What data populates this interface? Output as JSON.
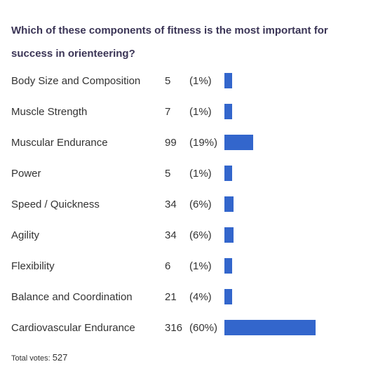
{
  "question": "Which of these components of fitness is the most important for success in orienteering?",
  "colors": {
    "bar": "#3366cc",
    "question_text": "#3b3556",
    "body_text": "#333333"
  },
  "chart_data": {
    "type": "bar",
    "orientation": "horizontal",
    "title": "Which of these components of fitness is the most important for success in orienteering?",
    "categories": [
      "Body Size and Composition",
      "Muscle Strength",
      "Muscular Endurance",
      "Power",
      "Speed / Quickness",
      "Agility",
      "Flexibility",
      "Balance and Coordination",
      "Cardiovascular Endurance"
    ],
    "values": [
      5,
      7,
      99,
      5,
      34,
      34,
      6,
      21,
      316
    ],
    "percent_labels": [
      "(1%)",
      "(1%)",
      "(19%)",
      "(1%)",
      "(6%)",
      "(6%)",
      "(1%)",
      "(4%)",
      "(60%)"
    ],
    "percent_values": [
      1,
      1,
      19,
      1,
      6,
      6,
      1,
      4,
      60
    ],
    "grid": false,
    "legend": "none"
  },
  "footer": {
    "total_label": "Total votes:",
    "total_value": "527"
  }
}
